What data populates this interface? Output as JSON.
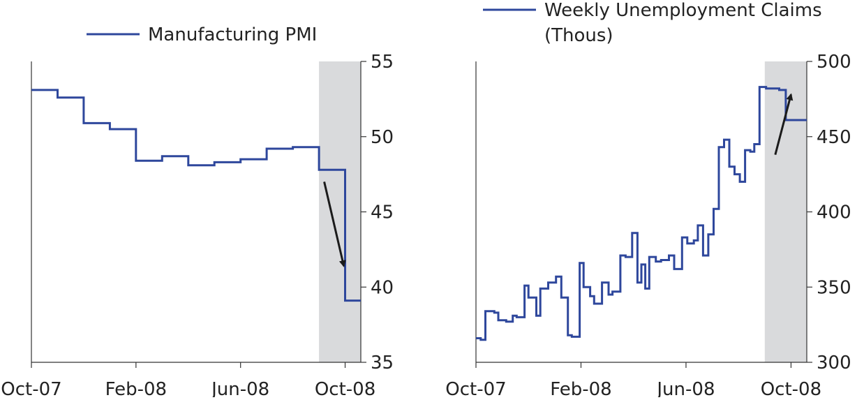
{
  "colors": {
    "line": "#2e479c",
    "shade": "#d9dadc",
    "axis": "#333333",
    "arrow": "#1b1b1b"
  },
  "chart_data": [
    {
      "type": "line",
      "series": [
        {
          "name": "Manufacturing PMI",
          "color": "#2e479c",
          "x": [
            0,
            1,
            2,
            3,
            4,
            5,
            6,
            7,
            8,
            9,
            10,
            11,
            12,
            12.95
          ],
          "values": [
            53.1,
            52.6,
            50.9,
            50.5,
            48.4,
            48.7,
            48.1,
            48.3,
            48.5,
            49.2,
            49.3,
            47.8,
            39.1,
            39.1
          ],
          "step": true
        }
      ],
      "x_tick_labels": [
        "Oct-07",
        "Feb-08",
        "Jun-08",
        "Oct-08"
      ],
      "x_tick_positions": [
        0,
        4,
        8,
        12
      ],
      "xlim": [
        0,
        12.6
      ],
      "ylim": [
        35,
        55
      ],
      "y_ticks": [
        35,
        40,
        45,
        50,
        55
      ],
      "y_axis_side": "right",
      "legend_position": "top",
      "shaded_region": [
        11,
        12.6
      ],
      "annotation": {
        "type": "arrow",
        "direction": "down",
        "from": [
          11.2,
          47
        ],
        "to": [
          11.95,
          41.4
        ]
      }
    },
    {
      "type": "line",
      "series": [
        {
          "name": "Weekly Unemployment Claims (Thous)",
          "color": "#2e479c",
          "x": [
            0,
            0.18,
            0.36,
            0.7,
            0.85,
            1.15,
            1.4,
            1.55,
            1.85,
            2.0,
            2.3,
            2.45,
            2.75,
            3.05,
            3.25,
            3.5,
            3.65,
            3.95,
            4.1,
            4.35,
            4.5,
            4.8,
            5.05,
            5.2,
            5.5,
            5.7,
            5.95,
            6.15,
            6.3,
            6.45,
            6.6,
            6.85,
            7.05,
            7.35,
            7.55,
            7.85,
            8.05,
            8.3,
            8.45,
            8.65,
            8.85,
            9.05,
            9.25,
            9.45,
            9.65,
            9.85,
            10.05,
            10.25,
            10.45,
            10.6,
            10.8,
            11.05,
            11.3,
            11.55,
            11.8,
            12.15,
            12.45,
            12.6
          ],
          "values": [
            316,
            315,
            334,
            333,
            328,
            327,
            331,
            330,
            351,
            343,
            331,
            349,
            353,
            357,
            343,
            318,
            317,
            366,
            350,
            344,
            339,
            353,
            345,
            347,
            371,
            370,
            386,
            353,
            365,
            349,
            370,
            367,
            368,
            371,
            362,
            383,
            379,
            381,
            391,
            371,
            385,
            402,
            443,
            448,
            430,
            425,
            420,
            441,
            440,
            445,
            483,
            482,
            482,
            481,
            461,
            461,
            461,
            461
          ],
          "step": true
        }
      ],
      "x_tick_labels": [
        "Oct-07",
        "Feb-08",
        "Jun-08",
        "Oct-08"
      ],
      "x_tick_positions": [
        0,
        4,
        8,
        12
      ],
      "xlim": [
        0,
        12.6
      ],
      "ylim": [
        300,
        500
      ],
      "y_ticks": [
        300,
        350,
        400,
        450,
        500
      ],
      "y_axis_side": "right",
      "legend_position": "top",
      "shaded_region": [
        11,
        12.6
      ],
      "annotation": {
        "type": "arrow",
        "direction": "up",
        "from": [
          11.4,
          438
        ],
        "to": [
          12.0,
          478
        ]
      }
    }
  ]
}
